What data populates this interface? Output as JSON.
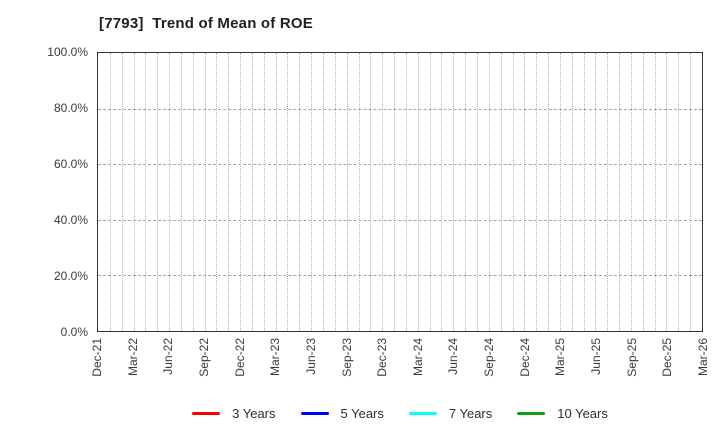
{
  "chart_data": {
    "type": "line",
    "title": "[7793]  Trend of Mean of ROE",
    "xlabel": "",
    "ylabel": "",
    "ylim": [
      0,
      100
    ],
    "y_ticks": [
      0,
      20,
      40,
      60,
      80,
      100
    ],
    "y_tick_labels": [
      "0.0%",
      "20.0%",
      "40.0%",
      "60.0%",
      "80.0%",
      "100.0%"
    ],
    "x_tick_labels": [
      "Dec-21",
      "Mar-22",
      "Jun-22",
      "Sep-22",
      "Dec-22",
      "Mar-23",
      "Jun-23",
      "Sep-23",
      "Dec-23",
      "Mar-24",
      "Jun-24",
      "Sep-24",
      "Dec-24",
      "Mar-25",
      "Jun-25",
      "Sep-25",
      "Dec-25",
      "Mar-26"
    ],
    "x_minor_divisions_per_interval": 3,
    "grid": true,
    "legend_position": "bottom-center",
    "series": [
      {
        "name": "3 Years",
        "color": "#ff0000",
        "values": []
      },
      {
        "name": "5 Years",
        "color": "#0000ff",
        "values": []
      },
      {
        "name": "7 Years",
        "color": "#00ffff",
        "values": []
      },
      {
        "name": "10 Years",
        "color": "#12a012",
        "values": []
      }
    ]
  }
}
